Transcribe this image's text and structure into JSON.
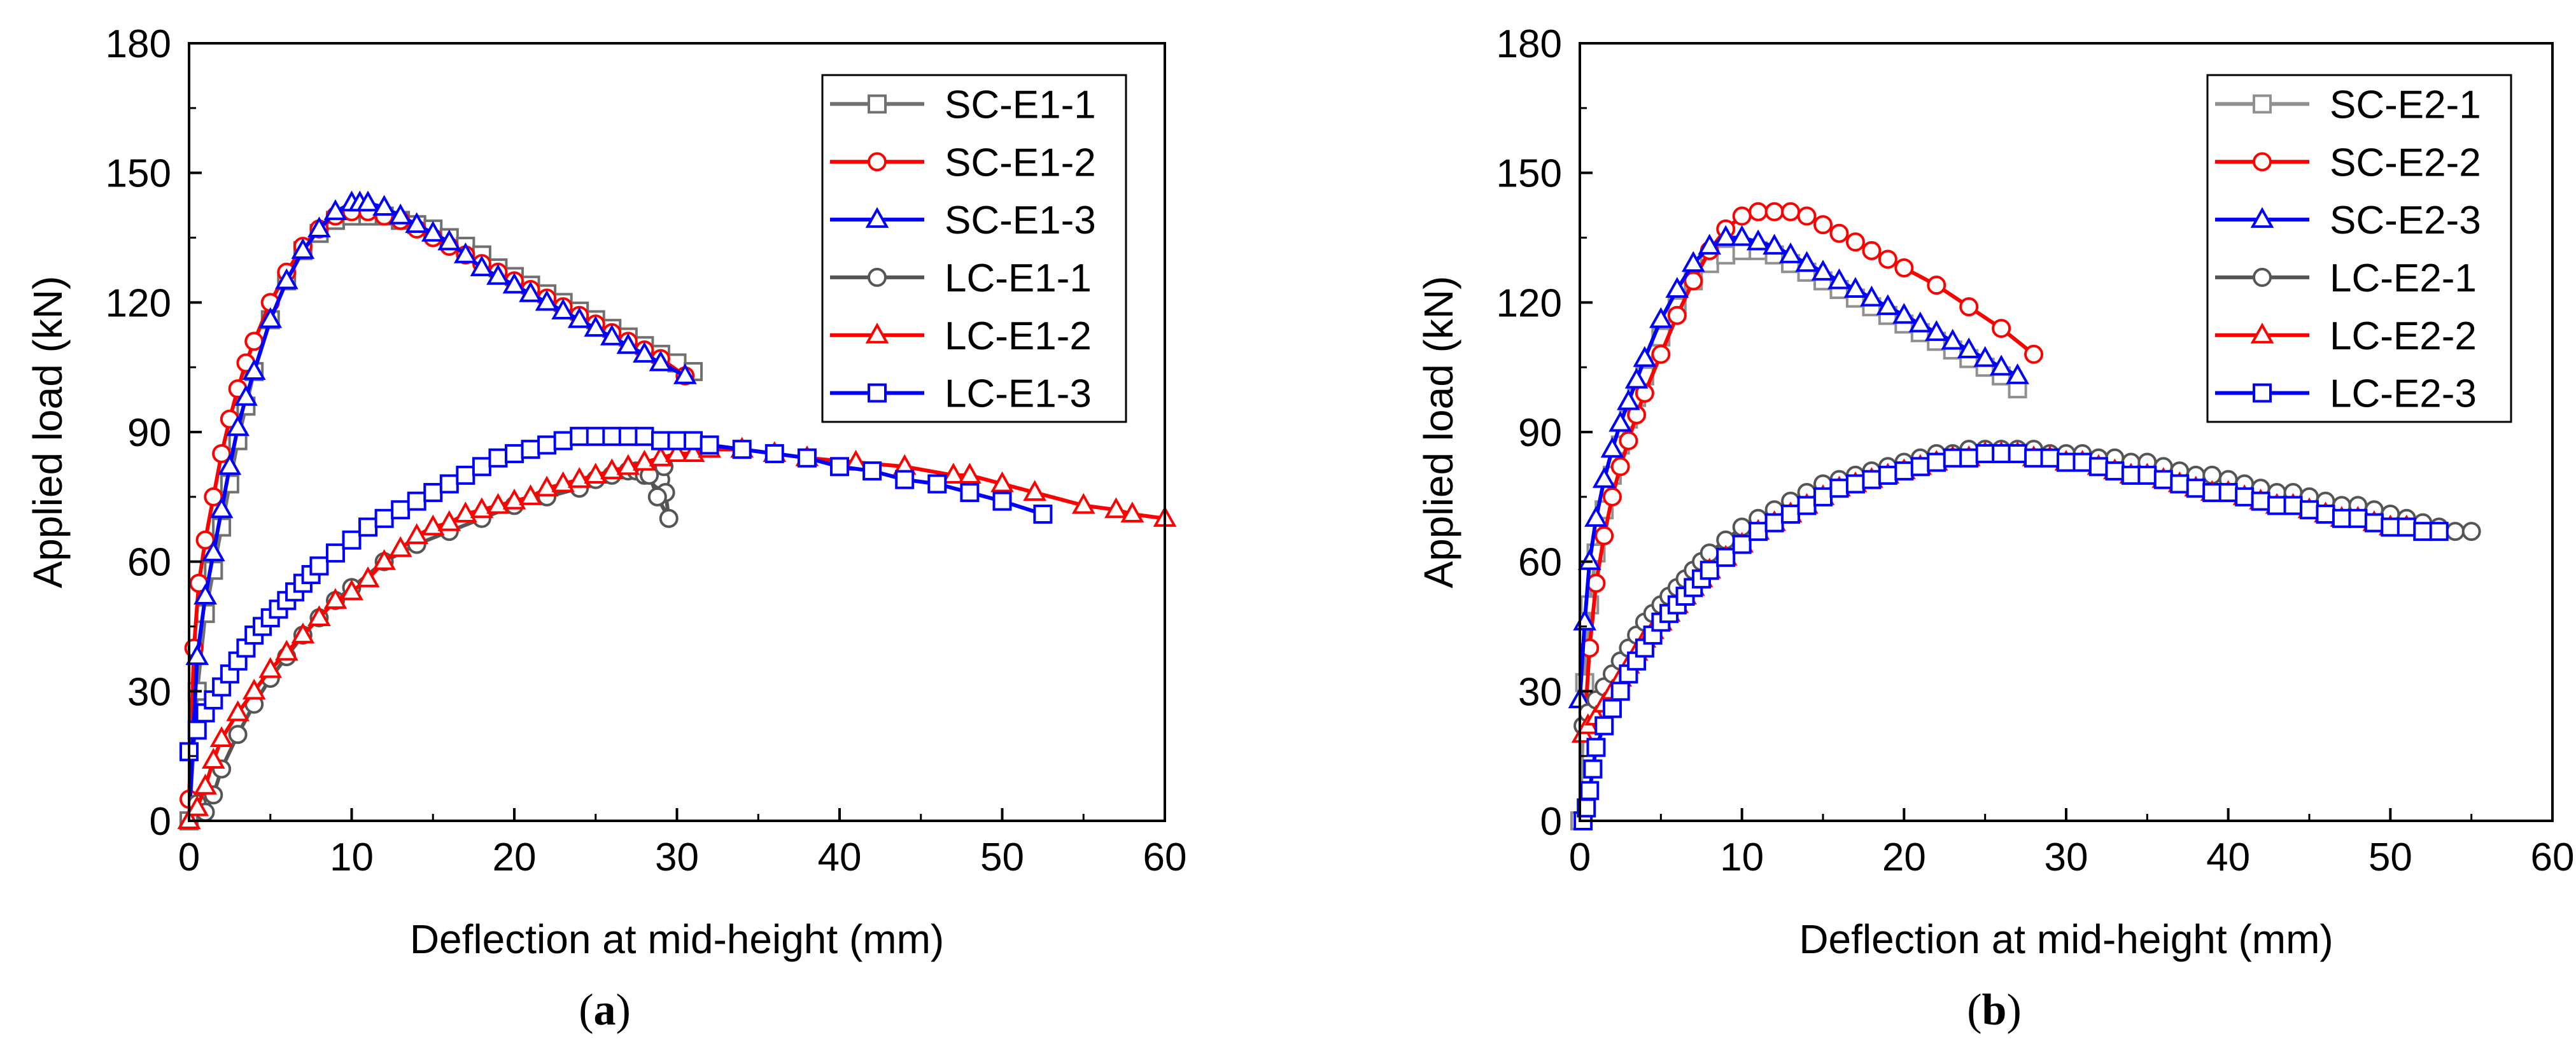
{
  "chart_data": [
    {
      "type": "line",
      "panel_label": "a",
      "xlabel": "Deflection at mid-height (mm)",
      "ylabel": "Applied load (kN)",
      "xlim": [
        0,
        60
      ],
      "ylim": [
        0,
        180
      ],
      "xticks": [
        "0",
        "10",
        "20",
        "30",
        "40",
        "50",
        "60"
      ],
      "yticks": [
        "0",
        "30",
        "60",
        "90",
        "120",
        "150",
        "180"
      ],
      "legend_position": "top-right",
      "series": [
        {
          "name": "SC-E1-1",
          "color": "#707070",
          "marker": "square",
          "x": [
            0,
            0.5,
            1,
            1.5,
            2,
            2.5,
            3,
            3.5,
            4,
            5,
            6,
            7,
            8,
            9,
            10,
            11,
            12,
            13,
            14,
            15,
            16,
            17,
            18,
            19,
            20,
            21,
            22,
            23,
            24,
            25,
            26,
            27,
            28,
            29,
            30,
            31
          ],
          "y": [
            0,
            30,
            48,
            58,
            68,
            78,
            88,
            96,
            104,
            116,
            125,
            132,
            136,
            139,
            140,
            140,
            140,
            139,
            138,
            137,
            135,
            133,
            131,
            128,
            126,
            124,
            122,
            120,
            118,
            116,
            114,
            112,
            110,
            108,
            106,
            104
          ]
        },
        {
          "name": "SC-E1-2",
          "color": "#ff0000",
          "marker": "circle",
          "x": [
            0,
            0.3,
            0.6,
            1,
            1.5,
            2,
            2.5,
            3,
            3.5,
            4,
            5,
            6,
            7,
            8,
            9,
            10,
            11,
            12,
            13,
            14,
            15,
            16,
            17,
            18,
            19,
            20,
            21,
            22,
            23,
            24,
            25,
            26,
            27,
            28,
            29,
            30.5
          ],
          "y": [
            5,
            40,
            55,
            65,
            75,
            85,
            93,
            100,
            106,
            111,
            120,
            127,
            133,
            137,
            140,
            141,
            141,
            140,
            139,
            137,
            135,
            133,
            131,
            129,
            127,
            125,
            123,
            121,
            119,
            117,
            115,
            113,
            111,
            109,
            107,
            103
          ]
        },
        {
          "name": "SC-E1-3",
          "color": "#0000ff",
          "marker": "triangle",
          "x": [
            0,
            0.5,
            1,
            1.5,
            2,
            2.5,
            3,
            3.5,
            4,
            5,
            6,
            7,
            8,
            9,
            10,
            10.5,
            11,
            12,
            13,
            14,
            15,
            16,
            17,
            18,
            19,
            20,
            21,
            22,
            23,
            24,
            25,
            26,
            27,
            28,
            29,
            30.5
          ],
          "y": [
            0,
            38,
            52,
            62,
            72,
            82,
            91,
            98,
            104,
            116,
            125,
            132,
            137,
            141,
            143,
            143,
            143,
            142,
            140,
            138,
            136,
            134,
            131,
            128,
            126,
            124,
            122,
            120,
            118,
            116,
            114,
            112,
            110,
            108,
            106,
            103
          ]
        },
        {
          "name": "LC-E1-1",
          "color": "#555555",
          "marker": "circle-open",
          "x": [
            0.5,
            1,
            1.5,
            2,
            3,
            4,
            5,
            6,
            7,
            8,
            9,
            10,
            12,
            14,
            16,
            18,
            20,
            22,
            24,
            25,
            26,
            27,
            27.5,
            28,
            28.5,
            29,
            29.3,
            29.5,
            28.8,
            28.3,
            29.2
          ],
          "y": [
            4,
            2,
            6,
            12,
            20,
            27,
            33,
            38,
            43,
            47,
            51,
            54,
            60,
            64,
            67,
            70,
            73,
            75,
            77,
            79,
            80,
            81,
            81,
            80,
            80,
            79,
            76,
            70,
            75,
            80,
            82
          ]
        },
        {
          "name": "LC-E1-2",
          "color": "#ff0000",
          "marker": "triangle",
          "x": [
            0,
            0.5,
            1,
            1.5,
            2,
            3,
            4,
            5,
            6,
            7,
            8,
            9,
            10,
            11,
            12,
            13,
            14,
            15,
            16,
            17,
            18,
            19,
            20,
            21,
            22,
            23,
            24,
            25,
            26,
            27,
            28,
            29,
            30,
            31,
            32,
            34,
            36,
            38,
            41,
            44,
            47,
            48,
            50,
            52,
            55,
            57,
            58,
            60
          ],
          "y": [
            0,
            3,
            8,
            14,
            19,
            25,
            30,
            35,
            39,
            43,
            47,
            51,
            53,
            56,
            60,
            63,
            66,
            68,
            69,
            71,
            72,
            73,
            74,
            75,
            77,
            78,
            79,
            80,
            81,
            82,
            83,
            84,
            85,
            85,
            86,
            86,
            85,
            84,
            83,
            82,
            80,
            80,
            78,
            76,
            73,
            72,
            71,
            70
          ]
        },
        {
          "name": "LC-E1-3",
          "color": "#0000ff",
          "marker": "square",
          "x": [
            0,
            0.5,
            1,
            1.5,
            2,
            2.5,
            3,
            3.5,
            4,
            4.5,
            5,
            5.5,
            6,
            6.5,
            7,
            7.5,
            8,
            9,
            10,
            11,
            12,
            13,
            14,
            15,
            16,
            17,
            18,
            19,
            20,
            21,
            22,
            23,
            24,
            25,
            26,
            27,
            28,
            29,
            30,
            31,
            32,
            34,
            36,
            38,
            40,
            42,
            44,
            46,
            48,
            50,
            52.5
          ],
          "y": [
            16,
            21,
            25,
            28,
            31,
            34,
            37,
            40,
            43,
            45,
            47,
            49,
            51,
            53,
            55,
            57,
            59,
            62,
            65,
            68,
            70,
            72,
            74,
            76,
            78,
            80,
            82,
            84,
            85,
            86,
            87,
            88,
            89,
            89,
            89,
            89,
            89,
            88,
            88,
            88,
            87,
            86,
            85,
            84,
            82,
            81,
            79,
            78,
            76,
            74,
            71
          ]
        }
      ]
    },
    {
      "type": "line",
      "panel_label": "b",
      "xlabel": "Deflection at mid-height (mm)",
      "ylabel": "Applied load (kN)",
      "xlim": [
        0,
        60
      ],
      "ylim": [
        0,
        180
      ],
      "xticks": [
        "0",
        "10",
        "20",
        "30",
        "40",
        "50",
        "60"
      ],
      "yticks": [
        "0",
        "30",
        "60",
        "90",
        "120",
        "150",
        "180"
      ],
      "legend_position": "top-right",
      "series": [
        {
          "name": "SC-E2-1",
          "color": "#909090",
          "marker": "square",
          "x": [
            0,
            0.3,
            0.6,
            1,
            1.5,
            2,
            2.5,
            3,
            3.5,
            4,
            5,
            6,
            7,
            8,
            9,
            10,
            11,
            12,
            13,
            14,
            15,
            16,
            17,
            18,
            19,
            20,
            21,
            22,
            23,
            24,
            25,
            26,
            27
          ],
          "y": [
            0,
            32,
            50,
            62,
            72,
            80,
            87,
            93,
            98,
            103,
            112,
            119,
            125,
            129,
            131,
            132,
            132,
            131,
            129,
            127,
            125,
            123,
            121,
            119,
            117,
            115,
            113,
            111,
            109,
            107,
            105,
            103,
            100
          ]
        },
        {
          "name": "SC-E2-2",
          "color": "#ff0000",
          "marker": "circle",
          "x": [
            0.3,
            0.6,
            1,
            1.5,
            2,
            2.5,
            3,
            3.5,
            4,
            5,
            6,
            7,
            8,
            9,
            10,
            11,
            12,
            13,
            14,
            15,
            16,
            17,
            18,
            19,
            20,
            22,
            24,
            26,
            28
          ],
          "y": [
            22,
            40,
            55,
            66,
            75,
            82,
            88,
            94,
            99,
            108,
            117,
            125,
            132,
            137,
            140,
            141,
            141,
            141,
            140,
            138,
            136,
            134,
            132,
            130,
            128,
            124,
            119,
            114,
            108
          ]
        },
        {
          "name": "SC-E2-3",
          "color": "#0000ff",
          "marker": "triangle",
          "x": [
            0,
            0.3,
            0.6,
            1,
            1.5,
            2,
            2.5,
            3,
            3.5,
            4,
            5,
            6,
            7,
            8,
            9,
            10,
            11,
            12,
            13,
            14,
            15,
            16,
            17,
            18,
            19,
            20,
            21,
            22,
            23,
            24,
            25,
            26,
            27
          ],
          "y": [
            28,
            46,
            60,
            70,
            79,
            86,
            92,
            97,
            102,
            107,
            116,
            123,
            129,
            133,
            135,
            135,
            134,
            133,
            131,
            129,
            127,
            125,
            123,
            121,
            119,
            117,
            115,
            113,
            111,
            109,
            107,
            105,
            103
          ]
        },
        {
          "name": "LC-E2-1",
          "color": "#555555",
          "marker": "circle-open",
          "x": [
            0.2,
            0.5,
            1,
            1.5,
            2,
            2.5,
            3,
            3.5,
            4,
            4.5,
            5,
            5.5,
            6,
            6.5,
            7,
            7.5,
            8,
            9,
            10,
            11,
            12,
            13,
            14,
            15,
            16,
            17,
            18,
            19,
            20,
            21,
            22,
            23,
            24,
            25,
            26,
            27,
            28,
            29,
            30,
            31,
            32,
            33,
            34,
            35,
            36,
            37,
            38,
            39,
            40,
            41,
            42,
            43,
            44,
            45,
            46,
            47,
            48,
            49,
            50,
            51,
            52,
            53,
            54,
            55
          ],
          "y": [
            22,
            25,
            28,
            31,
            34,
            37,
            40,
            43,
            46,
            48,
            50,
            52,
            54,
            56,
            58,
            60,
            62,
            65,
            68,
            70,
            72,
            74,
            76,
            78,
            79,
            80,
            81,
            82,
            83,
            84,
            85,
            85,
            86,
            86,
            86,
            86,
            86,
            85,
            85,
            85,
            84,
            84,
            83,
            83,
            82,
            81,
            80,
            80,
            79,
            78,
            77,
            76,
            76,
            75,
            74,
            73,
            73,
            72,
            71,
            70,
            69,
            68,
            67,
            67
          ]
        },
        {
          "name": "LC-E2-2",
          "color": "#ff0000",
          "marker": "triangle",
          "x": [
            0.2,
            0.5,
            1,
            1.5,
            2,
            2.5,
            3,
            3.5,
            4,
            4.5,
            5,
            5.5,
            6,
            6.5,
            7,
            7.5,
            8,
            9,
            10,
            11,
            12,
            13,
            14,
            15,
            16,
            17,
            18,
            19,
            20,
            21,
            22,
            23,
            24,
            25,
            26,
            27,
            28,
            29,
            30,
            31,
            32,
            33,
            34,
            35,
            36,
            37,
            38,
            39,
            40,
            41,
            42,
            43,
            44,
            45,
            46,
            47,
            48,
            49,
            50,
            51
          ],
          "y": [
            20,
            22,
            24,
            27,
            30,
            33,
            36,
            39,
            42,
            44,
            46,
            48,
            50,
            52,
            54,
            56,
            58,
            61,
            64,
            67,
            69,
            71,
            73,
            75,
            77,
            78,
            79,
            80,
            81,
            82,
            83,
            84,
            84,
            85,
            85,
            85,
            84,
            84,
            83,
            83,
            82,
            81,
            80,
            80,
            79,
            78,
            77,
            76,
            76,
            75,
            74,
            73,
            73,
            72,
            71,
            70,
            70,
            69,
            68,
            68
          ]
        },
        {
          "name": "LC-E2-3",
          "color": "#0000ff",
          "marker": "square",
          "x": [
            0.2,
            0.4,
            0.6,
            0.8,
            1,
            1.5,
            2,
            2.5,
            3,
            3.5,
            4,
            4.5,
            5,
            5.5,
            6,
            6.5,
            7,
            7.5,
            8,
            9,
            10,
            11,
            12,
            13,
            14,
            15,
            16,
            17,
            18,
            19,
            20,
            21,
            22,
            23,
            24,
            25,
            26,
            27,
            28,
            29,
            30,
            31,
            32,
            33,
            34,
            35,
            36,
            37,
            38,
            39,
            40,
            41,
            42,
            43,
            44,
            45,
            46,
            47,
            48,
            49,
            50,
            51,
            52,
            53
          ],
          "y": [
            0,
            3,
            7,
            12,
            17,
            22,
            26,
            30,
            34,
            37,
            40,
            43,
            46,
            48,
            50,
            52,
            54,
            56,
            58,
            61,
            64,
            67,
            69,
            71,
            73,
            75,
            77,
            78,
            79,
            80,
            81,
            82,
            83,
            84,
            84,
            85,
            85,
            85,
            84,
            84,
            83,
            83,
            82,
            81,
            80,
            80,
            79,
            78,
            77,
            76,
            76,
            75,
            74,
            73,
            73,
            72,
            71,
            70,
            70,
            69,
            68,
            68,
            67,
            67
          ]
        }
      ]
    }
  ]
}
